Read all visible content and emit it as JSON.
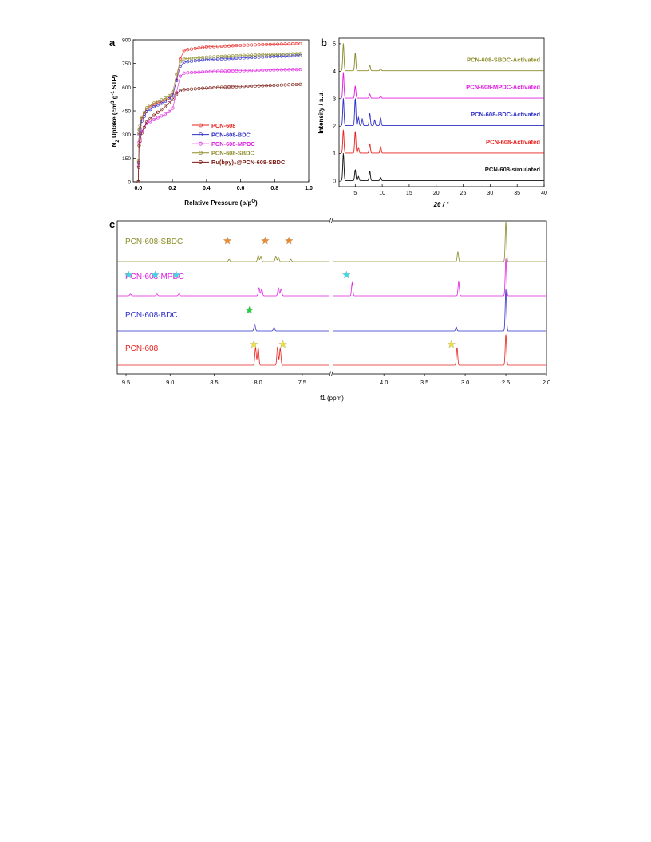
{
  "panel_labels": {
    "a": "a",
    "b": "b",
    "c": "c"
  },
  "chart_data": [
    {
      "panel": "a",
      "type": "scatter",
      "xlabel": "Relative Pressure (p/p",
      "xlabel_sup": "O",
      "xlabel_end": ")",
      "ylabel_parts": [
        "N",
        "2",
        " Uptake (cm",
        "3",
        " g",
        "-1",
        " STP)"
      ],
      "xlim": [
        -0.03,
        1.0
      ],
      "ylim": [
        0,
        900
      ],
      "xticks": [
        "0.0",
        "0.2",
        "0.4",
        "0.6",
        "0.8",
        "1.0"
      ],
      "xtick_values": [
        0.0,
        0.2,
        0.4,
        0.6,
        0.8,
        1.0
      ],
      "yticks": [
        "0",
        "150",
        "300",
        "450",
        "600",
        "750",
        "900"
      ],
      "ytick_values": [
        0,
        150,
        300,
        450,
        600,
        750,
        900
      ],
      "legend_position": "center-right",
      "series": [
        {
          "name": "PCN-608",
          "color": "#e8231f",
          "knots": [
            [
              0,
              0
            ],
            [
              0.005,
              310
            ],
            [
              0.02,
              400
            ],
            [
              0.05,
              460
            ],
            [
              0.1,
              495
            ],
            [
              0.15,
              515
            ],
            [
              0.2,
              545
            ],
            [
              0.22,
              620
            ],
            [
              0.235,
              720
            ],
            [
              0.25,
              800
            ],
            [
              0.27,
              835
            ],
            [
              0.4,
              855
            ],
            [
              0.6,
              865
            ],
            [
              0.8,
              872
            ],
            [
              0.95,
              875
            ]
          ]
        },
        {
          "name": "PCN-608-BDC",
          "color": "#2f2fc8",
          "knots": [
            [
              0,
              0
            ],
            [
              0.005,
              300
            ],
            [
              0.02,
              385
            ],
            [
              0.05,
              445
            ],
            [
              0.1,
              480
            ],
            [
              0.15,
              505
            ],
            [
              0.2,
              540
            ],
            [
              0.22,
              620
            ],
            [
              0.235,
              700
            ],
            [
              0.25,
              745
            ],
            [
              0.27,
              760
            ],
            [
              0.4,
              775
            ],
            [
              0.6,
              785
            ],
            [
              0.8,
              795
            ],
            [
              0.95,
              800
            ]
          ]
        },
        {
          "name": "PCN-608-MPDC",
          "color": "#e020e0",
          "knots": [
            [
              0,
              0
            ],
            [
              0.005,
              250
            ],
            [
              0.02,
              320
            ],
            [
              0.05,
              370
            ],
            [
              0.1,
              400
            ],
            [
              0.15,
              425
            ],
            [
              0.2,
              460
            ],
            [
              0.22,
              540
            ],
            [
              0.235,
              640
            ],
            [
              0.25,
              680
            ],
            [
              0.27,
              690
            ],
            [
              0.4,
              698
            ],
            [
              0.6,
              705
            ],
            [
              0.8,
              710
            ],
            [
              0.95,
              712
            ]
          ]
        },
        {
          "name": "PCN-608-SBDC",
          "color": "#8c8c2a",
          "knots": [
            [
              0,
              0
            ],
            [
              0.005,
              330
            ],
            [
              0.02,
              410
            ],
            [
              0.05,
              470
            ],
            [
              0.1,
              505
            ],
            [
              0.15,
              525
            ],
            [
              0.2,
              560
            ],
            [
              0.22,
              660
            ],
            [
              0.235,
              740
            ],
            [
              0.25,
              770
            ],
            [
              0.27,
              780
            ],
            [
              0.4,
              790
            ],
            [
              0.6,
              800
            ],
            [
              0.8,
              808
            ],
            [
              0.95,
              812
            ]
          ]
        },
        {
          "name": "Ru(bpy)₃@PCN-608-SBDC",
          "color": "#7a1a12",
          "knots": [
            [
              0,
              0
            ],
            [
              0.005,
              230
            ],
            [
              0.02,
              310
            ],
            [
              0.05,
              380
            ],
            [
              0.1,
              430
            ],
            [
              0.15,
              470
            ],
            [
              0.2,
              520
            ],
            [
              0.22,
              550
            ],
            [
              0.235,
              570
            ],
            [
              0.25,
              580
            ],
            [
              0.27,
              585
            ],
            [
              0.4,
              595
            ],
            [
              0.6,
              605
            ],
            [
              0.8,
              612
            ],
            [
              0.95,
              618
            ]
          ]
        }
      ]
    },
    {
      "panel": "b",
      "type": "line",
      "xlabel": "2θ / °",
      "ylabel": "Intensity / a.u.",
      "xlim": [
        2,
        40
      ],
      "ylim": [
        -0.2,
        5.2
      ],
      "xticks": [
        "5",
        "10",
        "15",
        "20",
        "25",
        "30",
        "35",
        "40"
      ],
      "xtick_values": [
        5,
        10,
        15,
        20,
        25,
        30,
        35,
        40
      ],
      "yticks": [
        "0",
        "1",
        "2",
        "3",
        "4",
        "5"
      ],
      "ytick_values": [
        0,
        1,
        2,
        3,
        4,
        5
      ],
      "series": [
        {
          "name": "PCN-608-simulated",
          "color": "#111111",
          "baseline": 0,
          "peaks": [
            [
              2.8,
              1.0
            ],
            [
              5.0,
              0.4
            ],
            [
              5.6,
              0.15
            ],
            [
              7.7,
              0.35
            ],
            [
              9.7,
              0.12
            ]
          ]
        },
        {
          "name": "PCN-608-Activated",
          "color": "#e8231f",
          "baseline": 1,
          "peaks": [
            [
              2.8,
              0.85
            ],
            [
              5.0,
              0.8
            ],
            [
              5.6,
              0.2
            ],
            [
              7.7,
              0.35
            ],
            [
              9.7,
              0.25
            ]
          ]
        },
        {
          "name": "PCN-608-BDC-Activated",
          "color": "#2f2fc8",
          "baseline": 2,
          "peaks": [
            [
              2.8,
              1.0
            ],
            [
              5.0,
              1.0
            ],
            [
              5.6,
              0.3
            ],
            [
              6.3,
              0.25
            ],
            [
              7.7,
              0.45
            ],
            [
              8.6,
              0.2
            ],
            [
              9.7,
              0.3
            ]
          ]
        },
        {
          "name": "PCN-608-MPDC-Activated",
          "color": "#e020e0",
          "baseline": 3,
          "peaks": [
            [
              2.8,
              0.95
            ],
            [
              5.0,
              0.45
            ],
            [
              7.7,
              0.15
            ],
            [
              9.7,
              0.08
            ]
          ]
        },
        {
          "name": "PCN-608-SBDC-Activated",
          "color": "#8c8c2a",
          "baseline": 4,
          "peaks": [
            [
              2.8,
              1.0
            ],
            [
              5.0,
              0.65
            ],
            [
              7.7,
              0.2
            ],
            [
              9.7,
              0.08
            ]
          ]
        }
      ]
    },
    {
      "panel": "c",
      "type": "line",
      "xlabel": "f1 (ppm)",
      "x_break": [
        2.6,
        7.2
      ],
      "xticks": [
        "9.5",
        "9.0",
        "8.5",
        "8.0",
        "7.5",
        "4.0",
        "3.5",
        "3.0",
        "2.5",
        "2.0"
      ],
      "xtick_values": [
        9.5,
        9.0,
        8.5,
        8.0,
        7.5,
        4.0,
        3.5,
        3.0,
        2.5,
        2.0
      ],
      "break_marks": "//",
      "series": [
        {
          "name": "PCN-608",
          "color": "#e8231f",
          "peaks": [
            [
              8.03,
              0.4
            ],
            [
              8.0,
              0.4
            ],
            [
              7.78,
              0.42
            ],
            [
              7.75,
              0.38
            ],
            [
              3.1,
              0.4
            ],
            [
              2.5,
              0.7
            ]
          ],
          "stars": [
            {
              "x": 8.05,
              "color": "#f3e234"
            },
            {
              "x": 7.72,
              "color": "#f3e234"
            },
            {
              "x": 3.17,
              "color": "#f3e234"
            }
          ]
        },
        {
          "name": "PCN-608-BDC",
          "color": "#2f2fc8",
          "peaks": [
            [
              8.04,
              0.15
            ],
            [
              7.82,
              0.08
            ],
            [
              3.11,
              0.09
            ],
            [
              2.5,
              0.95
            ]
          ],
          "stars": [
            {
              "x": 8.1,
              "color": "#22d33a"
            }
          ]
        },
        {
          "name": "PCN-608-MPDC",
          "color": "#e020e0",
          "peaks": [
            [
              9.45,
              0.04
            ],
            [
              9.15,
              0.04
            ],
            [
              8.9,
              0.04
            ],
            [
              7.99,
              0.18
            ],
            [
              7.96,
              0.16
            ],
            [
              7.77,
              0.18
            ],
            [
              7.74,
              0.16
            ],
            [
              4.39,
              0.3
            ],
            [
              3.08,
              0.32
            ],
            [
              2.5,
              0.85
            ]
          ],
          "stars": [
            {
              "x": 9.47,
              "color": "#3fd8e6"
            },
            {
              "x": 9.17,
              "color": "#3fd8e6"
            },
            {
              "x": 8.93,
              "color": "#3fd8e6"
            },
            {
              "x": 4.46,
              "color": "#3fd8e6"
            }
          ]
        },
        {
          "name": "PCN-608-SBDC",
          "color": "#8c8c2a",
          "peaks": [
            [
              8.33,
              0.05
            ],
            [
              8.0,
              0.14
            ],
            [
              7.97,
              0.12
            ],
            [
              7.8,
              0.12
            ],
            [
              7.77,
              0.1
            ],
            [
              7.63,
              0.05
            ],
            [
              3.09,
              0.22
            ],
            [
              2.5,
              0.9
            ]
          ],
          "stars": [
            {
              "x": 8.35,
              "color": "#f08a28"
            },
            {
              "x": 7.92,
              "color": "#f08a28"
            },
            {
              "x": 7.65,
              "color": "#f08a28"
            }
          ]
        }
      ]
    }
  ]
}
